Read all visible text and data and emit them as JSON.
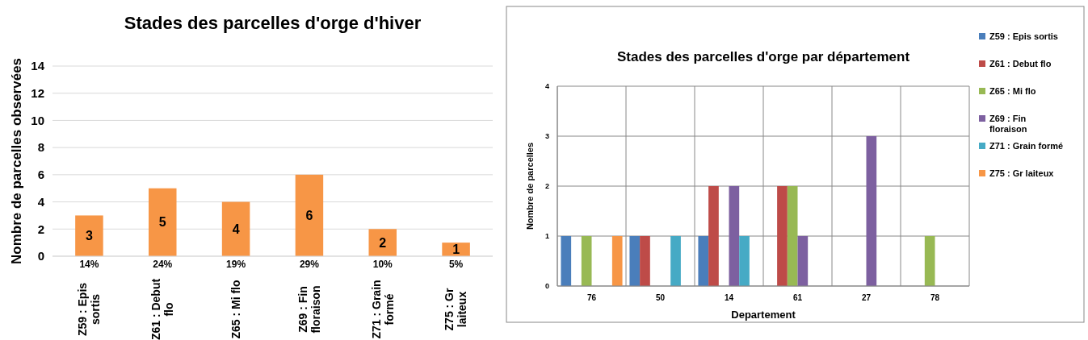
{
  "chart_data": [
    {
      "type": "bar",
      "title": "Stades des parcelles d'orge d'hiver",
      "ylabel": "Nombre de parcelles  observées",
      "categories": [
        "Z59 : Epis sortis",
        "Z61 : Debut flo",
        "Z65 : Mi flo",
        "Z69 : Fin floraison",
        "Z71 : Grain formé",
        "Z75 : Gr laiteux"
      ],
      "values": [
        3,
        5,
        4,
        6,
        2,
        1
      ],
      "color": "#f79646",
      "ylim": [
        0,
        14
      ],
      "yticks": [
        0,
        2,
        4,
        6,
        8,
        10,
        12,
        14
      ],
      "grid": "y",
      "data_labels": true,
      "annotations": [
        "14%",
        "24%",
        "19%",
        "29%",
        "10%",
        "5%"
      ]
    },
    {
      "type": "bar",
      "title": "Stades des parcelles d'orge par département",
      "xlabel": "Departement",
      "ylabel": "Nombre de parcelles",
      "categories": [
        "76",
        "50",
        "14",
        "61",
        "27",
        "78"
      ],
      "series": [
        {
          "name": "Z59 : Epis sortis",
          "color": "#4a7ebb",
          "values": [
            1,
            1,
            1,
            0,
            0,
            0
          ]
        },
        {
          "name": "Z61 : Debut flo",
          "color": "#be4b48",
          "values": [
            0,
            1,
            2,
            2,
            0,
            0
          ]
        },
        {
          "name": "Z65 : Mi flo",
          "color": "#98b954",
          "values": [
            1,
            0,
            0,
            2,
            0,
            1
          ]
        },
        {
          "name": "Z69 : Fin floraison",
          "color": "#7d60a0",
          "values": [
            0,
            0,
            2,
            1,
            3,
            0
          ]
        },
        {
          "name": "Z71 : Grain formé",
          "color": "#46aac5",
          "values": [
            0,
            1,
            1,
            0,
            0,
            0
          ]
        },
        {
          "name": "Z75 : Gr laiteux",
          "color": "#f79646",
          "values": [
            1,
            0,
            0,
            0,
            0,
            0
          ]
        }
      ],
      "ylim": [
        0,
        4
      ],
      "yticks": [
        0,
        1,
        2,
        3,
        4
      ],
      "grid": true,
      "legend": "right"
    }
  ]
}
